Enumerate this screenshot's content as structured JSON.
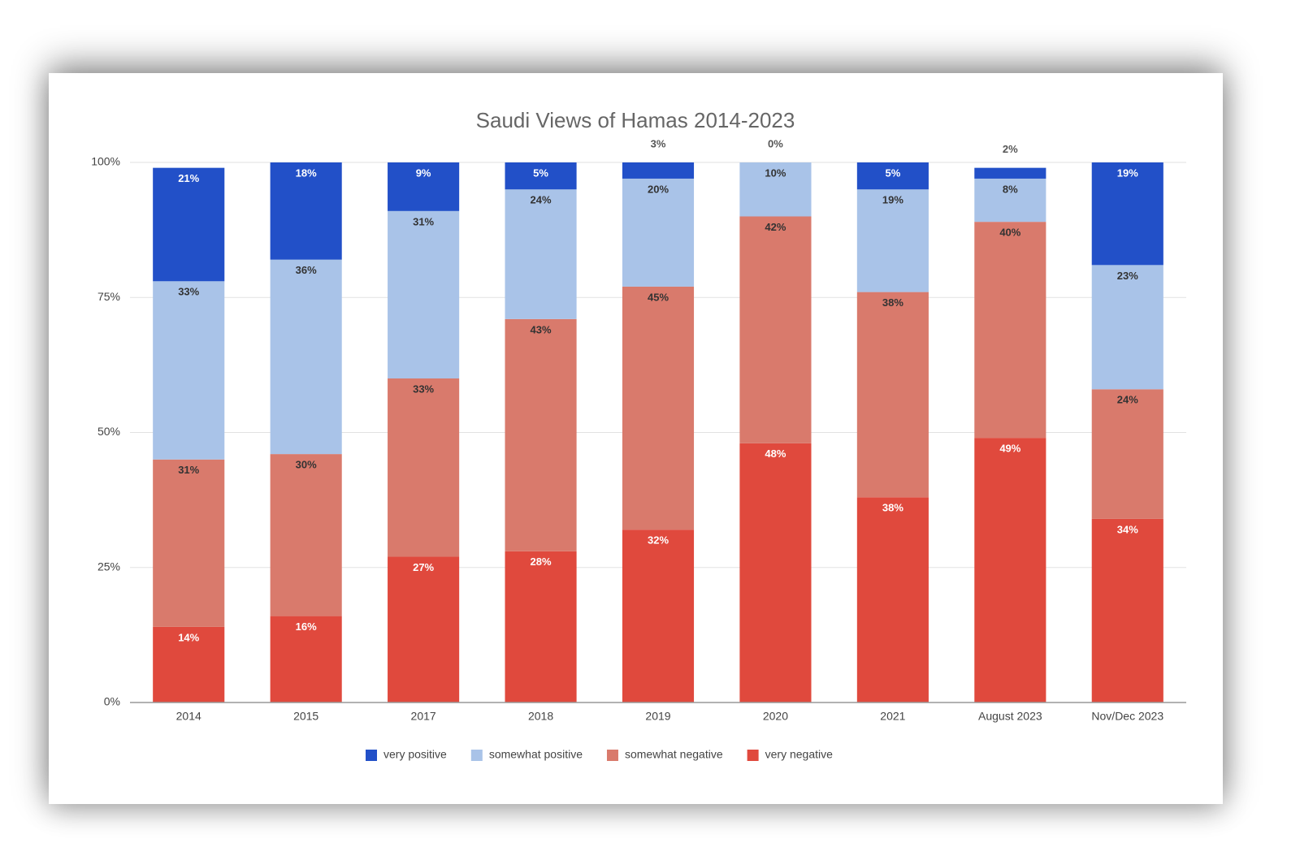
{
  "chart_data": {
    "type": "stacked_bar",
    "title": "Saudi Views of Hamas 2014-2023",
    "categories": [
      "2014",
      "2015",
      "2017",
      "2018",
      "2019",
      "2020",
      "2021",
      "August 2023",
      "Nov/Dec 2023"
    ],
    "series": [
      {
        "name": "very positive",
        "color": "#2250c8",
        "values": [
          21,
          18,
          9,
          5,
          3,
          0,
          5,
          2,
          19
        ],
        "value_labels": [
          "21%",
          "18%",
          "9%",
          "5%",
          "3%",
          "0%",
          "5%",
          "2%",
          "19%"
        ]
      },
      {
        "name": "somewhat positive",
        "color": "#a9c3e8",
        "values": [
          33,
          36,
          31,
          24,
          20,
          10,
          19,
          8,
          23
        ],
        "value_labels": [
          "33%",
          "36%",
          "31%",
          "24%",
          "20%",
          "10%",
          "19%",
          "8%",
          "23%"
        ]
      },
      {
        "name": "somewhat negative",
        "color": "#d97a6c",
        "values": [
          31,
          30,
          33,
          43,
          45,
          42,
          38,
          40,
          24
        ],
        "value_labels": [
          "31%",
          "30%",
          "33%",
          "43%",
          "45%",
          "42%",
          "38%",
          "40%",
          "24%"
        ]
      },
      {
        "name": "very negative",
        "color": "#e0493d",
        "values": [
          14,
          16,
          27,
          28,
          32,
          48,
          38,
          49,
          34
        ],
        "value_labels": [
          "14%",
          "16%",
          "27%",
          "28%",
          "32%",
          "48%",
          "38%",
          "49%",
          "34%"
        ]
      }
    ],
    "ylim": [
      0,
      100
    ],
    "yticks": [
      {
        "value": 0,
        "label": "0%"
      },
      {
        "value": 25,
        "label": "25%"
      },
      {
        "value": 50,
        "label": "50%"
      },
      {
        "value": 75,
        "label": "75%"
      },
      {
        "value": 100,
        "label": "100%"
      }
    ],
    "grid": true,
    "legend": "bottom"
  }
}
